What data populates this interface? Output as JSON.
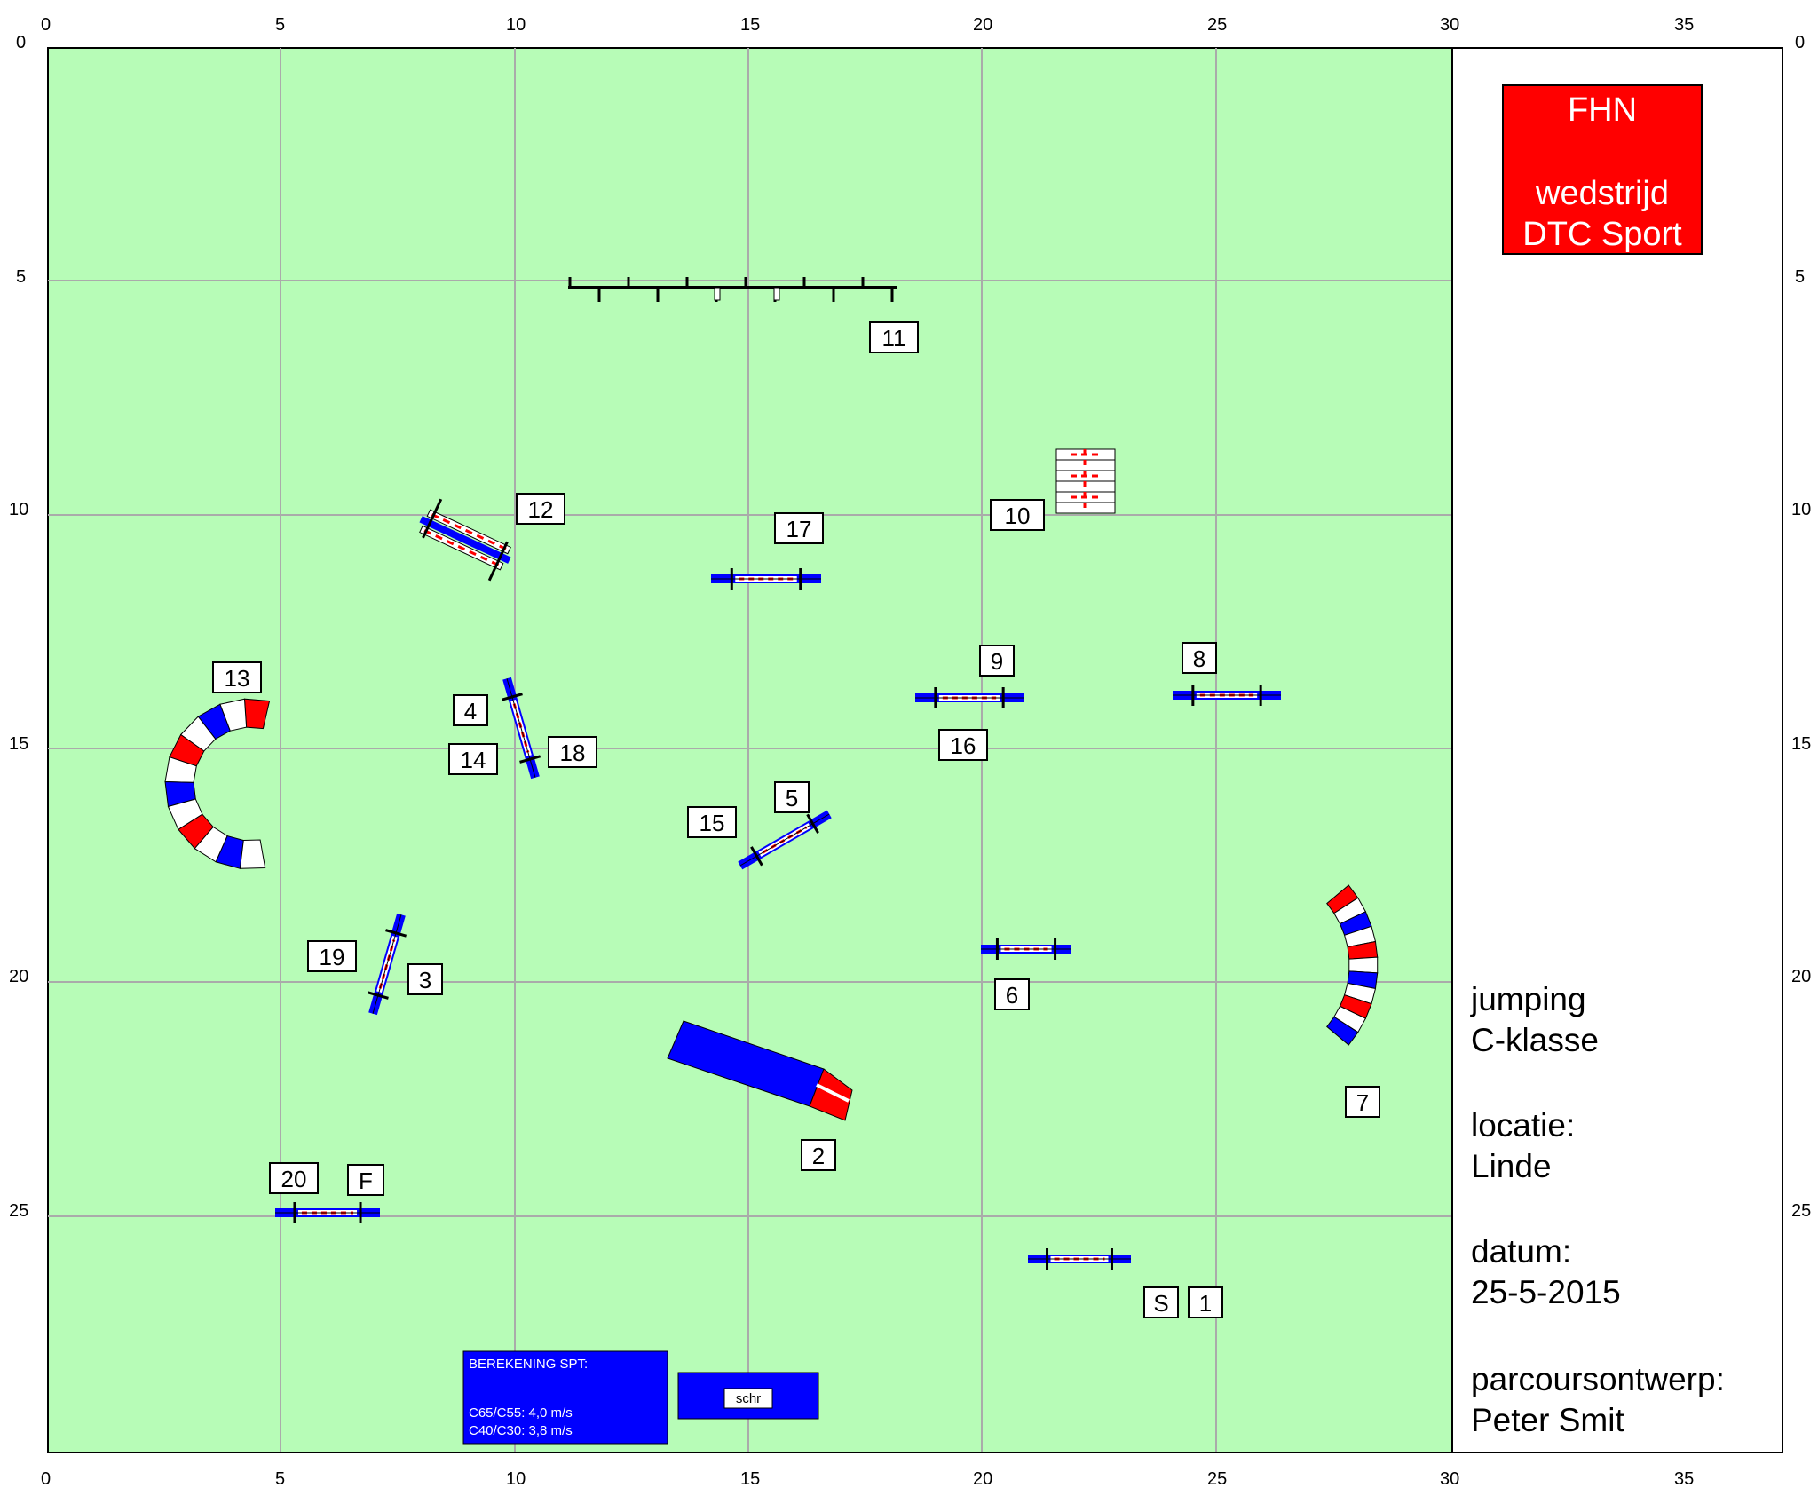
{
  "axis": {
    "top_ticks": [
      "0",
      "5",
      "10",
      "15",
      "20",
      "25",
      "30",
      "35"
    ],
    "bottom_ticks": [
      "0",
      "5",
      "10",
      "15",
      "20",
      "25",
      "30",
      "35"
    ],
    "left_ticks": [
      "0",
      "5",
      "10",
      "15",
      "20",
      "25"
    ],
    "right_ticks": [
      "0",
      "5",
      "10",
      "15",
      "20",
      "25"
    ]
  },
  "logo": {
    "line1": "FHN",
    "line2": "wedstrijd",
    "line3": "DTC Sport",
    "color": "#ff0000"
  },
  "info": {
    "line1": "jumping",
    "line2": "C-klasse",
    "line3": "locatie:",
    "line4": "Linde",
    "line5": "datum:",
    "line6": "25-5-2015",
    "line7": "parcoursontwerp:",
    "line8": "Peter Smit"
  },
  "labels": {
    "start": "S",
    "finish": "F",
    "n1": "1",
    "n2": "2",
    "n3": "3",
    "n4": "4",
    "n5": "5",
    "n6": "6",
    "n7": "7",
    "n8": "8",
    "n9": "9",
    "n10": "10",
    "n11": "11",
    "n12": "12",
    "n13": "13",
    "n14": "14",
    "n15": "15",
    "n16": "16",
    "n17": "17",
    "n18": "18",
    "n19": "19",
    "n20": "20"
  },
  "spt_box": {
    "title": "BEREKENING SPT:",
    "line1": "C65/C55: 4,0 m/s",
    "line2": "C40/C30: 3,8 m/s"
  },
  "schr_box": {
    "label": "schr"
  },
  "colors": {
    "field": "#b7fcb7",
    "grid": "#aaaaaa",
    "blue": "#0000ff",
    "red": "#ff0000"
  }
}
